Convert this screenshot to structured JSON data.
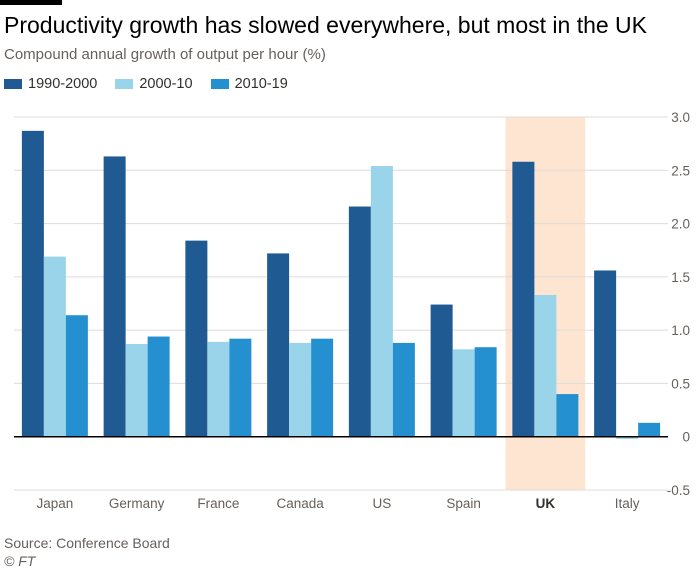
{
  "header": {
    "title": "Productivity growth has slowed everywhere, but most in the UK",
    "subtitle": "Compound annual growth of output per hour (%)"
  },
  "footer": {
    "source": "Source: Conference Board",
    "credit": "© FT"
  },
  "colors": {
    "s1990": "#1f5a92",
    "s2000": "#9ad4ea",
    "s2010": "#2590d0",
    "highlight": "#fde5d2",
    "grid": "#e0dcd8",
    "zero": "#000000"
  },
  "chart_data": {
    "type": "bar",
    "categories": [
      "Japan",
      "Germany",
      "France",
      "Canada",
      "US",
      "Spain",
      "UK",
      "Italy"
    ],
    "highlighted_category": "UK",
    "series": [
      {
        "name": "1990-2000",
        "values": [
          2.87,
          2.63,
          1.84,
          1.72,
          2.16,
          1.24,
          2.58,
          1.56
        ]
      },
      {
        "name": "2000-10",
        "values": [
          1.69,
          0.87,
          0.89,
          0.88,
          2.54,
          0.82,
          1.33,
          -0.02
        ]
      },
      {
        "name": "2010-19",
        "values": [
          1.14,
          0.94,
          0.92,
          0.92,
          0.88,
          0.84,
          0.4,
          0.13
        ]
      }
    ],
    "ylim": [
      -0.5,
      3.0
    ],
    "yticks": [
      -0.5,
      0,
      0.5,
      1.0,
      1.5,
      2.0,
      2.5,
      3.0
    ],
    "ytick_labels": [
      "-0.5",
      "0",
      "0.5",
      "1.0",
      "1.5",
      "2.0",
      "2.5",
      "3.0"
    ],
    "legend_position": "top-left",
    "grid": true,
    "y_axis_side": "right"
  }
}
